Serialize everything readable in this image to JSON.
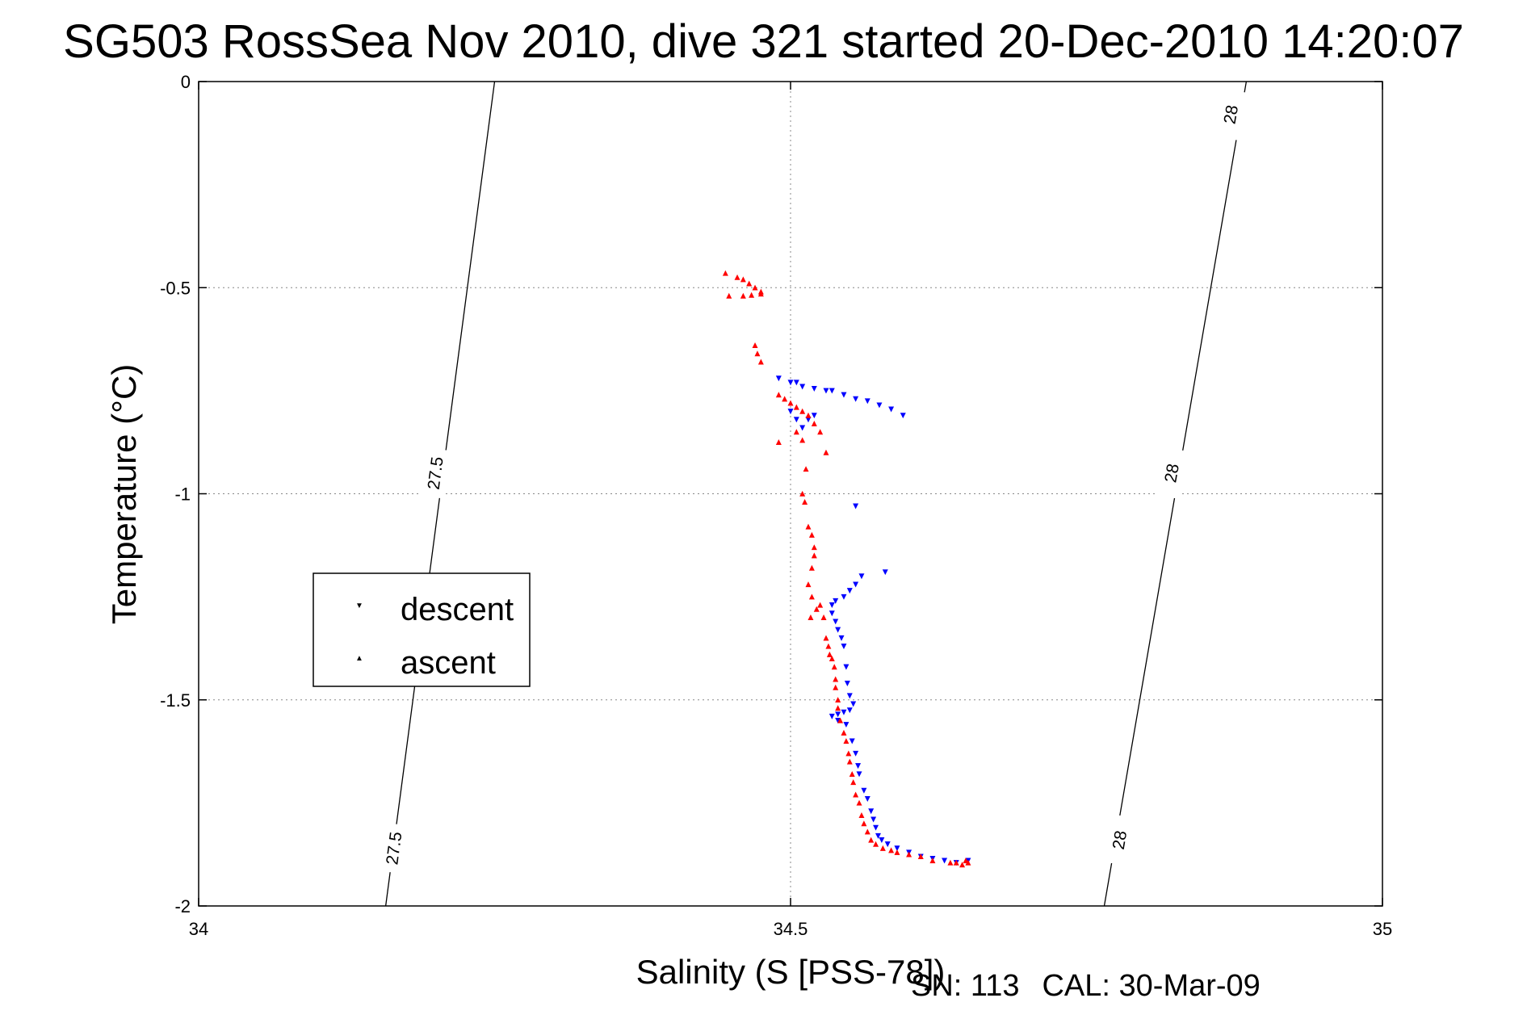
{
  "title": "SG503 RossSea Nov 2010, dive 321 started 20-Dec-2010 14:20:07",
  "footer": {
    "serial": "SN: 113",
    "calibration": "CAL: 30-Mar-09"
  },
  "chart_data": {
    "type": "scatter",
    "title": "SG503 RossSea Nov 2010, dive 321 started 20-Dec-2010 14:20:07",
    "xlabel": "Salinity (S [PSS-78])",
    "ylabel": "Temperature (°C)",
    "xlim": [
      34,
      35
    ],
    "ylim": [
      -2,
      0
    ],
    "xticks": [
      34,
      34.5,
      35
    ],
    "xtick_labels": [
      "34",
      "34.5",
      "35"
    ],
    "yticks": [
      0,
      -0.5,
      -1,
      -1.5,
      -2
    ],
    "ytick_labels": [
      "0",
      "-0.5",
      "-1",
      "-1.5",
      "-2"
    ],
    "grid": true,
    "legend": {
      "position": "center-left",
      "entries": [
        "descent",
        "ascent"
      ]
    },
    "isopycnals": [
      {
        "label": "27.5",
        "points": [
          [
            34.25,
            0
          ],
          [
            34.158,
            -2
          ]
        ],
        "labels": [
          {
            "text": "27.5",
            "s": 34.2,
            "t": -0.95
          },
          {
            "text": "27.5",
            "s": 34.165,
            "t": -1.86
          }
        ]
      },
      {
        "label": "28",
        "points": [
          [
            34.885,
            0
          ],
          [
            34.765,
            -2
          ]
        ],
        "labels": [
          {
            "text": "28",
            "s": 34.872,
            "t": -0.08
          },
          {
            "text": "28",
            "s": 34.822,
            "t": -0.95
          },
          {
            "text": "28",
            "s": 34.778,
            "t": -1.84
          }
        ]
      }
    ],
    "series": [
      {
        "name": "descent",
        "color": "#0000ff",
        "marker": "triangle-down",
        "points": [
          [
            34.49,
            -0.72
          ],
          [
            34.5,
            -0.73
          ],
          [
            34.505,
            -0.73
          ],
          [
            34.51,
            -0.74
          ],
          [
            34.52,
            -0.745
          ],
          [
            34.53,
            -0.75
          ],
          [
            34.535,
            -0.75
          ],
          [
            34.545,
            -0.76
          ],
          [
            34.555,
            -0.77
          ],
          [
            34.565,
            -0.775
          ],
          [
            34.575,
            -0.785
          ],
          [
            34.585,
            -0.795
          ],
          [
            34.595,
            -0.81
          ],
          [
            34.5,
            -0.8
          ],
          [
            34.505,
            -0.82
          ],
          [
            34.51,
            -0.84
          ],
          [
            34.515,
            -0.82
          ],
          [
            34.52,
            -0.81
          ],
          [
            34.555,
            -1.03
          ],
          [
            34.58,
            -1.19
          ],
          [
            34.56,
            -1.2
          ],
          [
            34.555,
            -1.22
          ],
          [
            34.55,
            -1.235
          ],
          [
            34.545,
            -1.25
          ],
          [
            34.538,
            -1.26
          ],
          [
            34.535,
            -1.27
          ],
          [
            34.535,
            -1.29
          ],
          [
            34.538,
            -1.31
          ],
          [
            34.54,
            -1.33
          ],
          [
            34.543,
            -1.35
          ],
          [
            34.545,
            -1.37
          ],
          [
            34.547,
            -1.42
          ],
          [
            34.548,
            -1.46
          ],
          [
            34.55,
            -1.49
          ],
          [
            34.553,
            -1.51
          ],
          [
            34.55,
            -1.525
          ],
          [
            34.545,
            -1.53
          ],
          [
            34.54,
            -1.535
          ],
          [
            34.535,
            -1.54
          ],
          [
            34.54,
            -1.55
          ],
          [
            34.547,
            -1.56
          ],
          [
            34.552,
            -1.6
          ],
          [
            34.555,
            -1.63
          ],
          [
            34.557,
            -1.66
          ],
          [
            34.558,
            -1.68
          ],
          [
            34.562,
            -1.72
          ],
          [
            34.565,
            -1.74
          ],
          [
            34.568,
            -1.77
          ],
          [
            34.57,
            -1.79
          ],
          [
            34.572,
            -1.81
          ],
          [
            34.574,
            -1.83
          ],
          [
            34.577,
            -1.84
          ],
          [
            34.582,
            -1.85
          ],
          [
            34.59,
            -1.86
          ],
          [
            34.6,
            -1.87
          ],
          [
            34.61,
            -1.88
          ],
          [
            34.62,
            -1.885
          ],
          [
            34.63,
            -1.89
          ],
          [
            34.64,
            -1.895
          ],
          [
            34.65,
            -1.89
          ]
        ]
      },
      {
        "name": "ascent",
        "color": "#ff0000",
        "marker": "triangle-up",
        "points": [
          [
            34.445,
            -0.465
          ],
          [
            34.455,
            -0.475
          ],
          [
            34.46,
            -0.48
          ],
          [
            34.465,
            -0.49
          ],
          [
            34.47,
            -0.5
          ],
          [
            34.475,
            -0.51
          ],
          [
            34.448,
            -0.52
          ],
          [
            34.46,
            -0.52
          ],
          [
            34.467,
            -0.518
          ],
          [
            34.475,
            -0.515
          ],
          [
            34.47,
            -0.64
          ],
          [
            34.472,
            -0.66
          ],
          [
            34.475,
            -0.68
          ],
          [
            34.49,
            -0.76
          ],
          [
            34.495,
            -0.77
          ],
          [
            34.5,
            -0.78
          ],
          [
            34.505,
            -0.79
          ],
          [
            34.51,
            -0.8
          ],
          [
            34.515,
            -0.81
          ],
          [
            34.52,
            -0.83
          ],
          [
            34.49,
            -0.875
          ],
          [
            34.505,
            -0.85
          ],
          [
            34.51,
            -0.87
          ],
          [
            34.525,
            -0.85
          ],
          [
            34.53,
            -0.9
          ],
          [
            34.513,
            -0.94
          ],
          [
            34.51,
            -1.0
          ],
          [
            34.512,
            -1.02
          ],
          [
            34.515,
            -1.08
          ],
          [
            34.518,
            -1.1
          ],
          [
            34.52,
            -1.13
          ],
          [
            34.52,
            -1.15
          ],
          [
            34.518,
            -1.18
          ],
          [
            34.515,
            -1.22
          ],
          [
            34.518,
            -1.25
          ],
          [
            34.522,
            -1.28
          ],
          [
            34.517,
            -1.3
          ],
          [
            34.525,
            -1.27
          ],
          [
            34.528,
            -1.3
          ],
          [
            34.53,
            -1.35
          ],
          [
            34.532,
            -1.37
          ],
          [
            34.533,
            -1.39
          ],
          [
            34.535,
            -1.4
          ],
          [
            34.537,
            -1.42
          ],
          [
            34.538,
            -1.45
          ],
          [
            34.538,
            -1.47
          ],
          [
            34.54,
            -1.5
          ],
          [
            34.54,
            -1.52
          ],
          [
            34.542,
            -1.55
          ],
          [
            34.545,
            -1.58
          ],
          [
            34.547,
            -1.6
          ],
          [
            34.549,
            -1.63
          ],
          [
            34.55,
            -1.65
          ],
          [
            34.552,
            -1.68
          ],
          [
            34.553,
            -1.7
          ],
          [
            34.555,
            -1.73
          ],
          [
            34.558,
            -1.75
          ],
          [
            34.56,
            -1.78
          ],
          [
            34.562,
            -1.8
          ],
          [
            34.565,
            -1.82
          ],
          [
            34.568,
            -1.84
          ],
          [
            34.572,
            -1.85
          ],
          [
            34.578,
            -1.86
          ],
          [
            34.585,
            -1.865
          ],
          [
            34.59,
            -1.87
          ],
          [
            34.6,
            -1.875
          ],
          [
            34.61,
            -1.88
          ],
          [
            34.62,
            -1.89
          ],
          [
            34.635,
            -1.895
          ],
          [
            34.64,
            -1.895
          ],
          [
            34.645,
            -1.9
          ],
          [
            34.648,
            -1.89
          ],
          [
            34.65,
            -1.895
          ]
        ]
      }
    ]
  }
}
